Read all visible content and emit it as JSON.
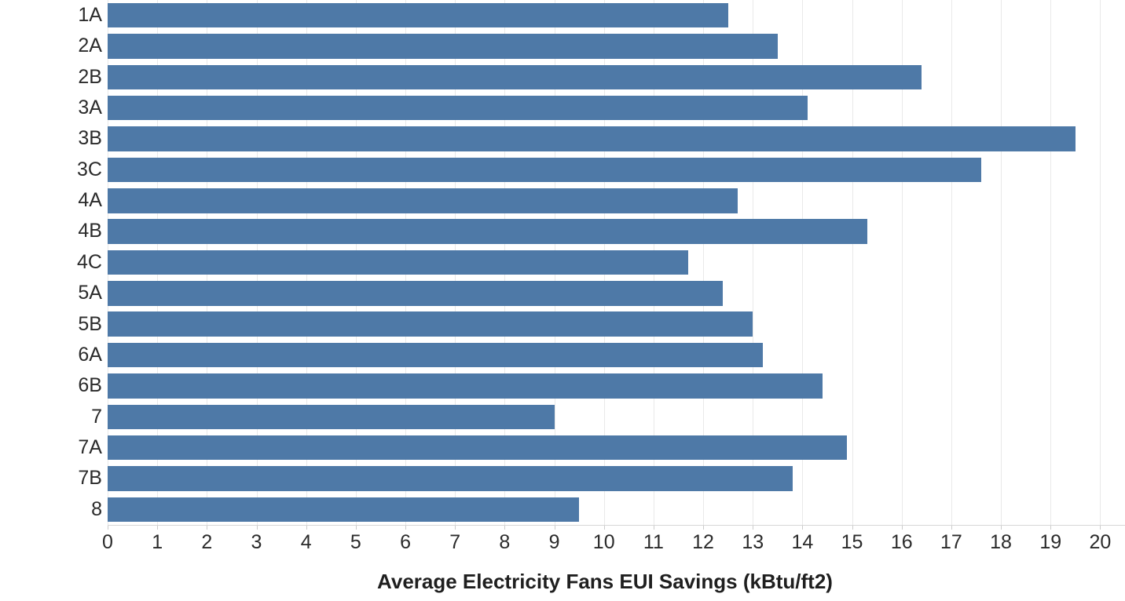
{
  "chart_data": {
    "type": "bar",
    "orientation": "horizontal",
    "title": "",
    "xlabel": "Average Electricity Fans EUI Savings (kBtu/ft2)",
    "ylabel": "",
    "categories": [
      "1A",
      "2A",
      "2B",
      "3A",
      "3B",
      "3C",
      "4A",
      "4B",
      "4C",
      "5A",
      "5B",
      "6A",
      "6B",
      "7",
      "7A",
      "7B",
      "8"
    ],
    "values": [
      12.5,
      13.5,
      16.4,
      14.1,
      19.5,
      17.6,
      12.7,
      15.3,
      11.7,
      12.4,
      13.0,
      13.2,
      14.4,
      9.0,
      14.9,
      13.8,
      9.5
    ],
    "xlim": [
      0,
      20.5
    ],
    "x_ticks": [
      0,
      1,
      2,
      3,
      4,
      5,
      6,
      7,
      8,
      9,
      10,
      11,
      12,
      13,
      14,
      15,
      16,
      17,
      18,
      19,
      20
    ],
    "grid": true,
    "legend": false,
    "colors": {
      "bar": "#4e79a7",
      "gridline": "#e9e9e9",
      "axis_line": "#d6d6d6",
      "tick": "#cccccc",
      "text": "#2b2b2b"
    }
  }
}
